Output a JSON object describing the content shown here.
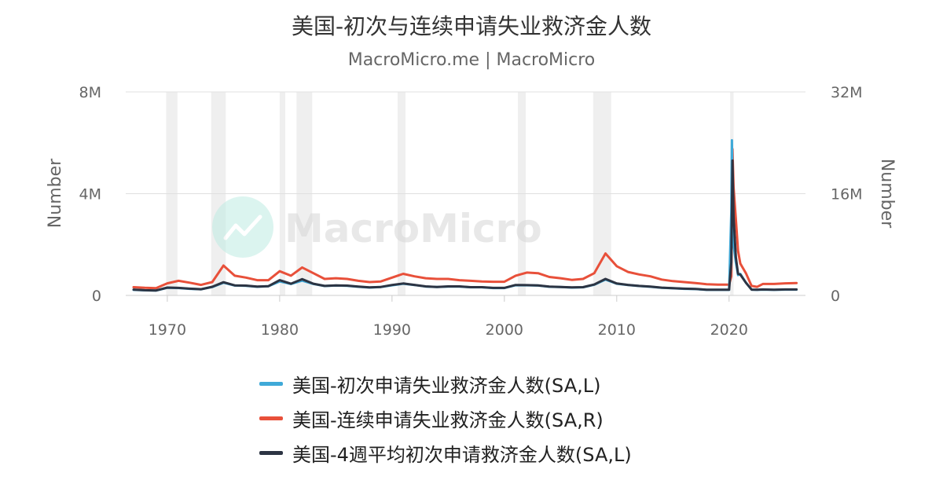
{
  "chart_data": {
    "type": "line",
    "title": "美国-初次与连续申请失业救济金人数",
    "subtitle": "MacroMicro.me | MacroMicro",
    "watermark": "MacroMicro",
    "y_left": {
      "label": "Number",
      "ylim": [
        0,
        8000000
      ],
      "ticks": [
        "0",
        "4M",
        "8M"
      ]
    },
    "y_right": {
      "label": "Number",
      "ylim": [
        0,
        32000000
      ],
      "ticks": [
        "0",
        "16M",
        "32M"
      ]
    },
    "x_axis": {
      "xlim": [
        1966.3,
        2026.8
      ],
      "ticks": [
        "1970",
        "1980",
        "1990",
        "2000",
        "2010",
        "2020"
      ]
    },
    "grid": true,
    "legend_position": "bottom",
    "recession_shading_color": "#efefef",
    "recessions": [
      [
        1969.9,
        1970.9
      ],
      [
        1973.9,
        1975.2
      ],
      [
        1980.0,
        1980.5
      ],
      [
        1981.5,
        1982.9
      ],
      [
        1990.5,
        1991.2
      ],
      [
        2001.2,
        2001.9
      ],
      [
        2007.9,
        2009.5
      ],
      [
        2020.1,
        2020.4
      ]
    ],
    "series": [
      {
        "name": "美国-初次申请失业救济金人数(SA,L)",
        "axis": "left",
        "color": "#3fa9d8",
        "x": [
          1967,
          1968,
          1969,
          1970,
          1971,
          1972,
          1973,
          1974,
          1975,
          1976,
          1977,
          1978,
          1979,
          1980,
          1981,
          1982,
          1983,
          1984,
          1985,
          1986,
          1987,
          1988,
          1989,
          1990,
          1991,
          1992,
          1993,
          1994,
          1995,
          1996,
          1997,
          1998,
          1999,
          2000,
          2001,
          2002,
          2003,
          2004,
          2005,
          2006,
          2007,
          2008,
          2009,
          2010,
          2011,
          2012,
          2013,
          2014,
          2015,
          2016,
          2017,
          2018,
          2019,
          2020.0,
          2020.2,
          2020.25,
          2020.3,
          2020.4,
          2020.6,
          2020.8,
          2021.0,
          2021.5,
          2022.0,
          2022.5,
          2023,
          2024,
          2025,
          2026
        ],
        "values": [
          220000,
          200000,
          190000,
          300000,
          290000,
          260000,
          240000,
          330000,
          500000,
          390000,
          380000,
          340000,
          360000,
          550000,
          450000,
          580000,
          450000,
          370000,
          390000,
          380000,
          340000,
          310000,
          330000,
          400000,
          460000,
          410000,
          350000,
          330000,
          350000,
          350000,
          320000,
          320000,
          290000,
          290000,
          400000,
          400000,
          390000,
          340000,
          330000,
          310000,
          320000,
          420000,
          620000,
          460000,
          410000,
          370000,
          340000,
          300000,
          280000,
          260000,
          250000,
          220000,
          220000,
          220000,
          3300000,
          6100000,
          4500000,
          2000000,
          1300000,
          800000,
          850000,
          500000,
          230000,
          220000,
          230000,
          220000,
          230000,
          230000
        ]
      },
      {
        "name": "美国-连续申请失业救济金人数(SA,R)",
        "axis": "right",
        "color": "#e8503a",
        "x": [
          1967,
          1968,
          1969,
          1970,
          1971,
          1972,
          1973,
          1974,
          1975,
          1976,
          1977,
          1978,
          1979,
          1980,
          1981,
          1982,
          1983,
          1984,
          1985,
          1986,
          1987,
          1988,
          1989,
          1990,
          1991,
          1992,
          1993,
          1994,
          1995,
          1996,
          1997,
          1998,
          1999,
          2000,
          2001,
          2002,
          2003,
          2004,
          2005,
          2006,
          2007,
          2008,
          2009,
          2010,
          2011,
          2012,
          2013,
          2014,
          2015,
          2016,
          2017,
          2018,
          2019,
          2020.0,
          2020.2,
          2020.3,
          2020.4,
          2020.6,
          2020.8,
          2021.0,
          2021.5,
          2022.0,
          2022.5,
          2023,
          2024,
          2025,
          2026
        ],
        "values": [
          1300000,
          1200000,
          1150000,
          1900000,
          2300000,
          2000000,
          1650000,
          2100000,
          4700000,
          3100000,
          2800000,
          2400000,
          2400000,
          3800000,
          3100000,
          4400000,
          3500000,
          2600000,
          2700000,
          2600000,
          2300000,
          2100000,
          2200000,
          2800000,
          3400000,
          3000000,
          2700000,
          2600000,
          2600000,
          2400000,
          2300000,
          2200000,
          2150000,
          2150000,
          3100000,
          3600000,
          3500000,
          2900000,
          2700000,
          2450000,
          2600000,
          3500000,
          6600000,
          4600000,
          3700000,
          3300000,
          3000000,
          2500000,
          2250000,
          2100000,
          1950000,
          1750000,
          1700000,
          1700000,
          3000000,
          23000000,
          17000000,
          12000000,
          7000000,
          5000000,
          3500000,
          1500000,
          1350000,
          1800000,
          1800000,
          1900000,
          1950000
        ]
      },
      {
        "name": "美国-4週平均初次申请救济金人数(SA,L)",
        "axis": "left",
        "color": "#2c3443",
        "x": [
          1967,
          1968,
          1969,
          1970,
          1971,
          1972,
          1973,
          1974,
          1975,
          1976,
          1977,
          1978,
          1979,
          1980,
          1981,
          1982,
          1983,
          1984,
          1985,
          1986,
          1987,
          1988,
          1989,
          1990,
          1991,
          1992,
          1993,
          1994,
          1995,
          1996,
          1997,
          1998,
          1999,
          2000,
          2001,
          2002,
          2003,
          2004,
          2005,
          2006,
          2007,
          2008,
          2009,
          2010,
          2011,
          2012,
          2013,
          2014,
          2015,
          2016,
          2017,
          2018,
          2019,
          2020.0,
          2020.2,
          2020.3,
          2020.4,
          2020.6,
          2020.8,
          2021.0,
          2021.5,
          2022.0,
          2022.5,
          2023,
          2024,
          2025,
          2026
        ],
        "values": [
          230000,
          205000,
          195000,
          310000,
          295000,
          265000,
          245000,
          340000,
          520000,
          395000,
          385000,
          345000,
          365000,
          600000,
          460000,
          640000,
          460000,
          375000,
          395000,
          385000,
          345000,
          315000,
          335000,
          410000,
          470000,
          415000,
          355000,
          335000,
          355000,
          355000,
          325000,
          325000,
          295000,
          295000,
          410000,
          405000,
          395000,
          345000,
          335000,
          315000,
          325000,
          430000,
          650000,
          470000,
          415000,
          375000,
          345000,
          305000,
          285000,
          265000,
          255000,
          225000,
          225000,
          225000,
          1300000,
          5300000,
          3100000,
          1500000,
          850000,
          820000,
          500000,
          230000,
          225000,
          235000,
          225000,
          235000,
          235000
        ]
      }
    ]
  }
}
